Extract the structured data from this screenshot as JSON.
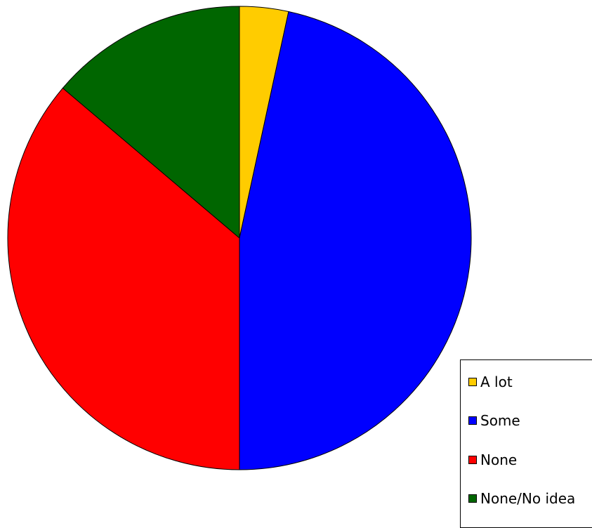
{
  "chart_data": {
    "type": "pie",
    "categories": [
      "A lot",
      "Some",
      "None",
      "None/No idea"
    ],
    "values": [
      3.4,
      46.6,
      36.2,
      13.8
    ],
    "colors": [
      "#ffcc00",
      "#0000ff",
      "#ff0000",
      "#006600"
    ],
    "start_angle": "12 o'clock",
    "direction": "clockwise",
    "legend_position": "bottom-right"
  }
}
